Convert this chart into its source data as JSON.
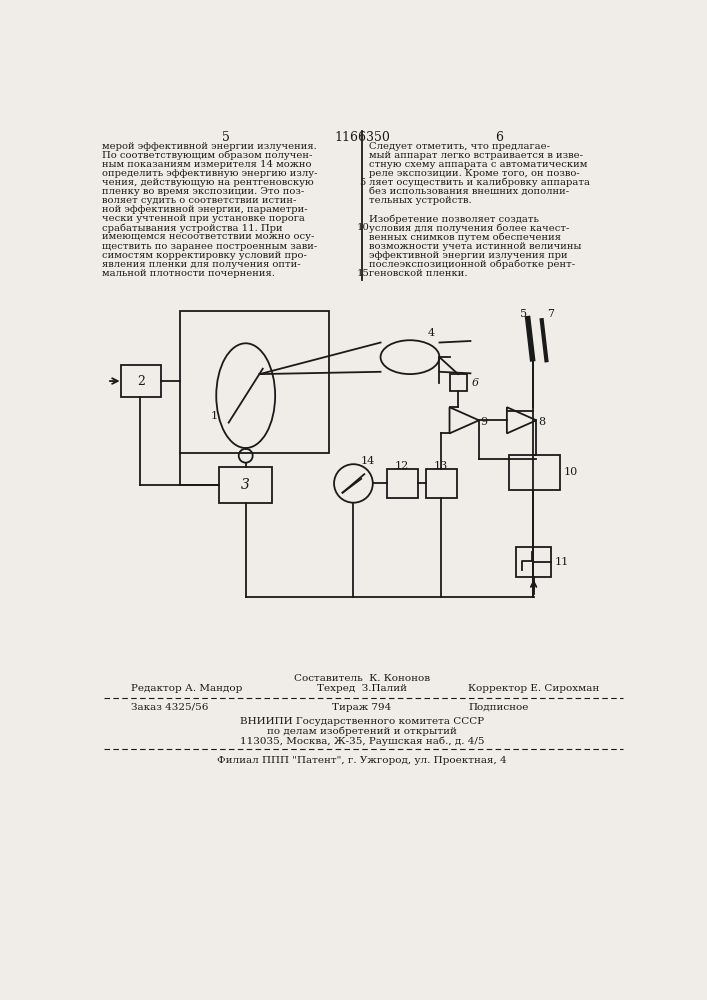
{
  "page_number_left": "5",
  "page_number_center": "1166350",
  "page_number_right": "6",
  "text_left": [
    "мерой эффективной энергии излучения.",
    "По соответствующим образом получен-",
    "ным показаниям измерителя 14 можно",
    "определить эффективную энергию излу-",
    "чения, действующую на рентгеновскую",
    "пленку во время экспозиции. Это поз-",
    "воляет судить о соответствии истин-",
    "ной эффективной энергии, параметри-",
    "чески учтенной при установке порога",
    "срабатывания устройства 11. При",
    "имеющемся несоответствии можно осу-",
    "ществить по заранее построенным зави-",
    "симостям корректировку условий про-",
    "явления пленки для получения опти-",
    "мальной плотности почернения."
  ],
  "text_right": [
    "Следует отметить, что предлагае-",
    "мый аппарат легко встраивается в изве-",
    "стную схему аппарата с автоматическим",
    "реле экспозиции. Кроме того, он позво-",
    "ляет осуществить и калибровку аппарата",
    "без использования внешних дополни-",
    "тельных устройств.",
    "",
    "Изобретение позволяет создать",
    "условия для получения более качест-",
    "венных снимков путем обеспечения",
    "возможности учета истинной величины",
    "эффективной энергии излучения при",
    "послеэкспозиционной обработке рент-",
    "геновской пленки."
  ],
  "footer_line1_left": "Редактор А. Мандор",
  "footer_line1_mid1": "Составитель  К. Кононов",
  "footer_line1_mid2": "Техред  З.Палий",
  "footer_line1_right": "Корректор Е. Сирохман",
  "footer_line2_left": "Заказ 4325/56",
  "footer_line2_mid": "Тираж 794",
  "footer_line2_right": "Подписное",
  "footer_line3": "ВНИИПИ Государственного комитета СССР",
  "footer_line4": "по делам изобретений и открытий",
  "footer_line5": "113035, Москва, Ж-35, Раушская наб., д. 4/5",
  "footer_line6": "Филиал ППП \"Патент\", г. Ужгород, ул. Проектная, 4",
  "bg_color": "#f0ede8",
  "text_color": "#1a1a1a",
  "line_color": "#1a1a1a"
}
